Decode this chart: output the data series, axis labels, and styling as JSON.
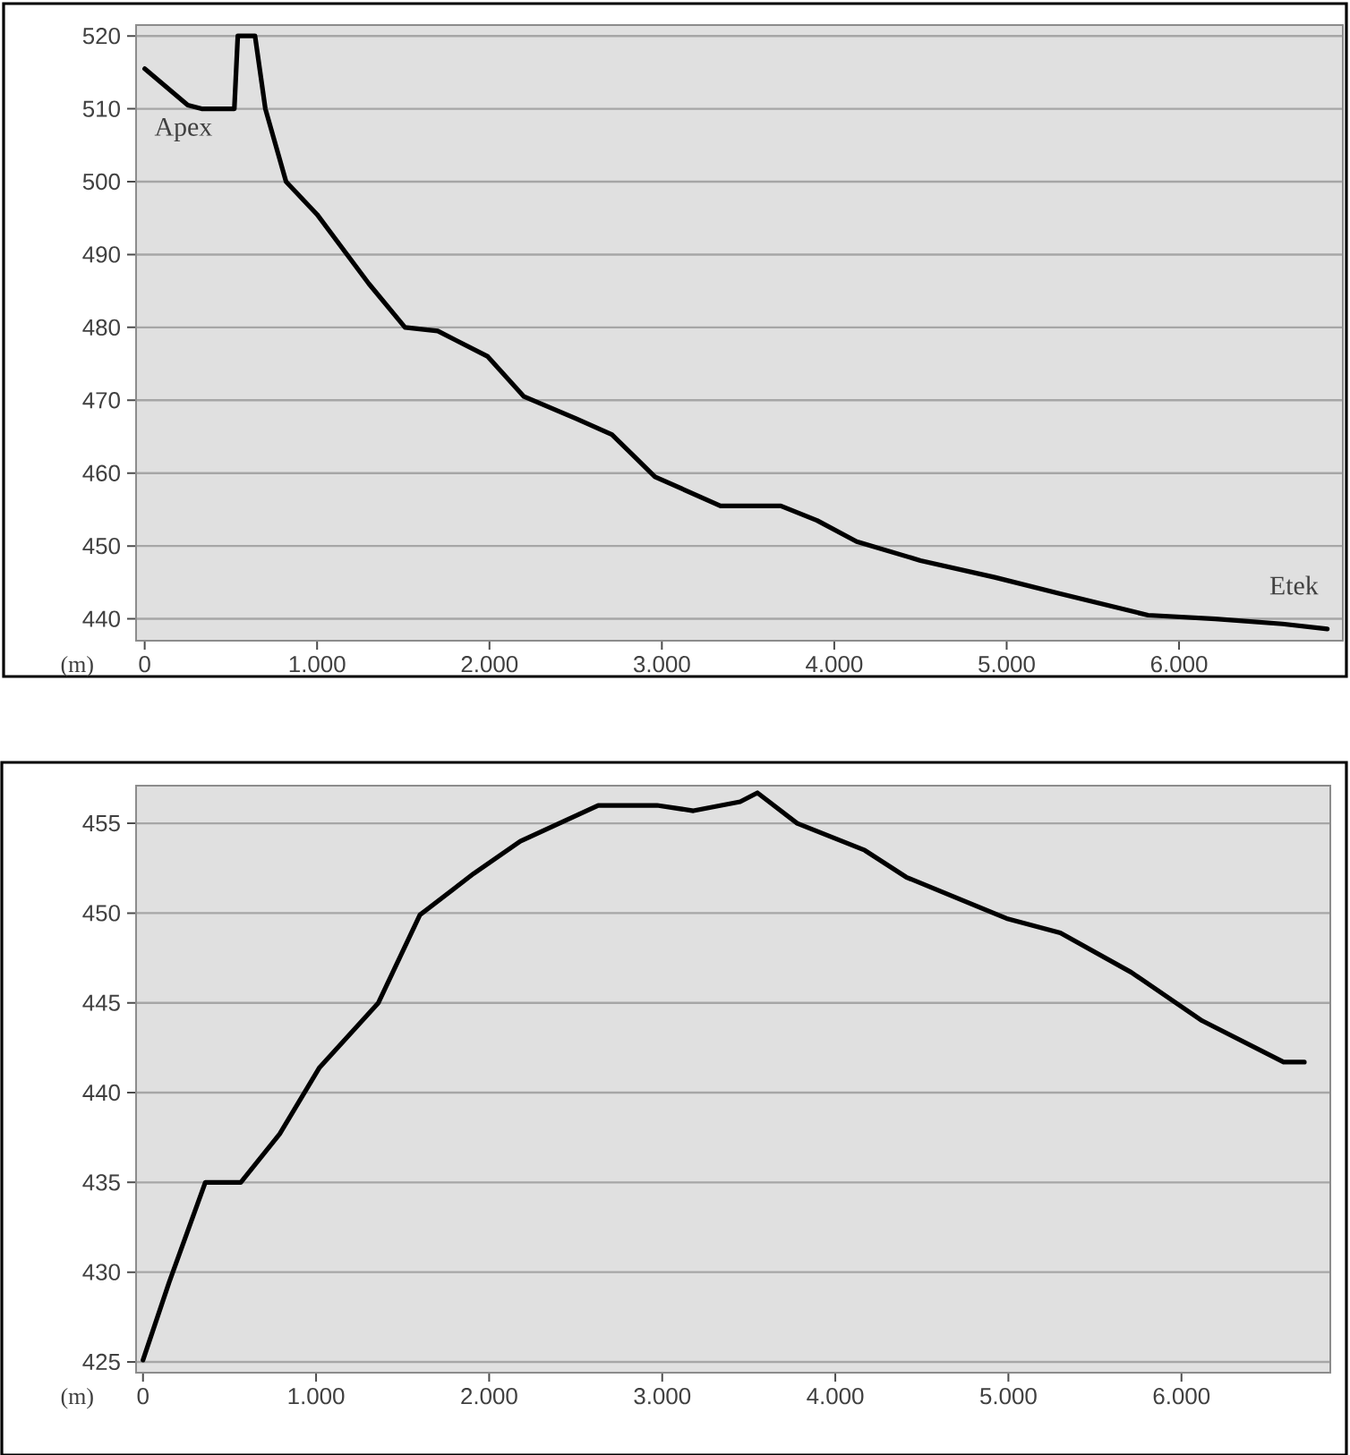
{
  "chart_data": [
    {
      "type": "line",
      "xlabel": "(m)",
      "grid": "y",
      "xlim": [
        -50,
        6950
      ],
      "ylim": [
        437,
        521.5
      ],
      "xticks": [
        0,
        {
          "value": 1000,
          "label": "1.000"
        },
        {
          "value": 2000,
          "label": "2.000"
        },
        {
          "value": 3000,
          "label": "3.000"
        },
        {
          "value": 4000,
          "label": "4.000"
        },
        {
          "value": 5000,
          "label": "5.000"
        },
        {
          "value": 6000,
          "label": "6.000"
        }
      ],
      "yticks": [
        440,
        450,
        460,
        470,
        480,
        490,
        500,
        510,
        520
      ],
      "annotations": [
        "Apex",
        "Etek"
      ],
      "series": [
        {
          "color": "#000000",
          "x": [
            0,
            250,
            330,
            440,
            520,
            540,
            640,
            700,
            820,
            1000,
            1300,
            1510,
            1700,
            1990,
            2200,
            2500,
            2710,
            2960,
            3340,
            3690,
            3900,
            4130,
            4500,
            4930,
            5300,
            5820,
            6210,
            6600,
            6860
          ],
          "values": [
            515.5,
            510.5,
            510,
            510,
            510,
            520,
            520,
            510,
            500,
            495.5,
            486,
            480,
            479.5,
            476,
            470.5,
            467.5,
            465.3,
            459.5,
            455.5,
            455.5,
            453.5,
            450.6,
            448,
            445.7,
            443.5,
            440.5,
            440,
            439.3,
            438.6
          ]
        }
      ]
    },
    {
      "type": "line",
      "xlabel": "(m)",
      "grid": "y",
      "xlim": [
        -40,
        6860
      ],
      "ylim": [
        424.4,
        457.1
      ],
      "xticks": [
        0,
        {
          "value": 1000,
          "label": "1.000"
        },
        {
          "value": 2000,
          "label": "2.000"
        },
        {
          "value": 3000,
          "label": "3.000"
        },
        {
          "value": 4000,
          "label": "4.000"
        },
        {
          "value": 5000,
          "label": "5.000"
        },
        {
          "value": 6000,
          "label": "6.000"
        }
      ],
      "yticks": [
        425,
        430,
        435,
        440,
        445,
        450,
        455
      ],
      "series": [
        {
          "color": "#000000",
          "x": [
            0,
            150,
            360,
            565,
            790,
            1020,
            1360,
            1600,
            1910,
            2180,
            2630,
            2970,
            3180,
            3450,
            3550,
            3780,
            4170,
            4410,
            4990,
            5300,
            5710,
            6120,
            6590,
            6710
          ],
          "values": [
            425.1,
            429.4,
            435,
            435,
            437.7,
            441.4,
            445,
            449.9,
            452.2,
            454,
            456,
            456,
            455.7,
            456.2,
            456.7,
            455,
            453.5,
            452,
            449.7,
            448.9,
            446.7,
            444,
            441.7,
            441.7
          ]
        }
      ]
    }
  ]
}
